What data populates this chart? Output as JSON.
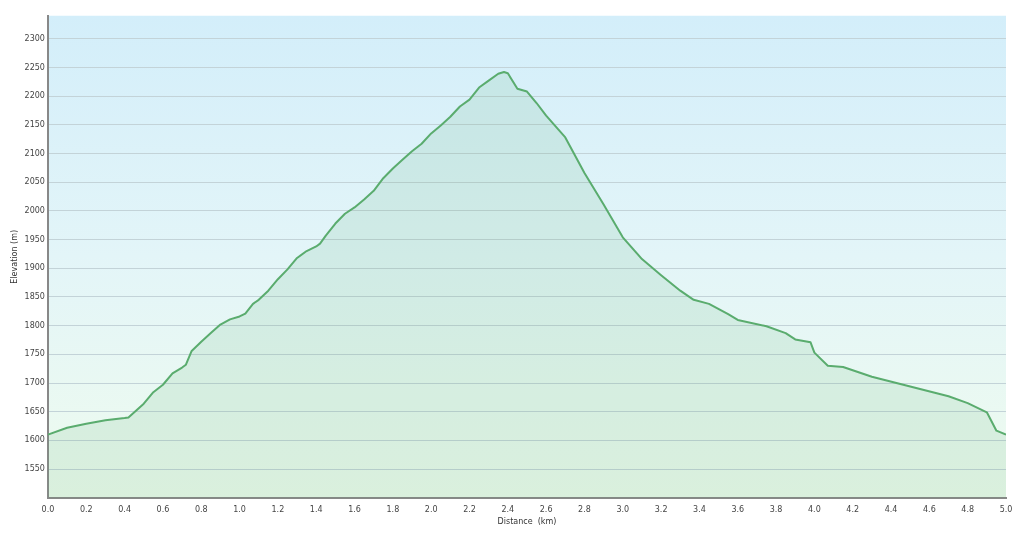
{
  "chart_data": {
    "type": "area",
    "xlabel": "Distance  (km)",
    "ylabel": "Elevation (m)",
    "xlim": [
      0,
      5
    ],
    "ylim": [
      1500,
      2340
    ],
    "xticks": [
      {
        "value": 0,
        "label": "0.0"
      },
      {
        "value": 0.2,
        "label": "0.2"
      },
      {
        "value": 0.4,
        "label": "0.4"
      },
      {
        "value": 0.6,
        "label": "0.6"
      },
      {
        "value": 0.8,
        "label": "0.8"
      },
      {
        "value": 1,
        "label": "1.0"
      },
      {
        "value": 1.2,
        "label": "1.2"
      },
      {
        "value": 1.4,
        "label": "1.4"
      },
      {
        "value": 1.6,
        "label": "1.6"
      },
      {
        "value": 1.8,
        "label": "1.8"
      },
      {
        "value": 2,
        "label": "2.0"
      },
      {
        "value": 2.2,
        "label": "2.2"
      },
      {
        "value": 2.4,
        "label": "2.4"
      },
      {
        "value": 2.6,
        "label": "2.6"
      },
      {
        "value": 2.8,
        "label": "2.8"
      },
      {
        "value": 3,
        "label": "3.0"
      },
      {
        "value": 3.2,
        "label": "3.2"
      },
      {
        "value": 3.4,
        "label": "3.4"
      },
      {
        "value": 3.6,
        "label": "3.6"
      },
      {
        "value": 3.8,
        "label": "3.8"
      },
      {
        "value": 4,
        "label": "4.0"
      },
      {
        "value": 4.2,
        "label": "4.2"
      },
      {
        "value": 4.4,
        "label": "4.4"
      },
      {
        "value": 4.6,
        "label": "4.6"
      },
      {
        "value": 4.8,
        "label": "4.8"
      },
      {
        "value": 5,
        "label": "5.0"
      }
    ],
    "yticks": [
      1550,
      1600,
      1650,
      1700,
      1750,
      1800,
      1850,
      1900,
      1950,
      2000,
      2050,
      2100,
      2150,
      2200,
      2250,
      2300
    ],
    "grid": "y",
    "marker": "none",
    "line_style": "solid",
    "x": [
      0,
      0.1,
      0.2,
      0.3,
      0.4,
      0.42,
      0.5,
      0.55,
      0.6,
      0.65,
      0.7,
      0.72,
      0.75,
      0.8,
      0.85,
      0.9,
      0.95,
      1,
      1.03,
      1.07,
      1.1,
      1.15,
      1.2,
      1.25,
      1.3,
      1.35,
      1.4,
      1.42,
      1.45,
      1.5,
      1.55,
      1.6,
      1.65,
      1.7,
      1.75,
      1.8,
      1.85,
      1.9,
      1.95,
      2,
      2.05,
      2.1,
      2.15,
      2.2,
      2.25,
      2.3,
      2.35,
      2.38,
      2.4,
      2.45,
      2.5,
      2.55,
      2.6,
      2.7,
      2.8,
      2.9,
      3,
      3.1,
      3.2,
      3.3,
      3.37,
      3.45,
      3.55,
      3.6,
      3.75,
      3.85,
      3.9,
      3.98,
      4,
      4.07,
      4.15,
      4.3,
      4.5,
      4.7,
      4.8,
      4.9,
      4.95,
      5
    ],
    "series": [
      {
        "color": "#5aac6e",
        "values": [
          1610,
          1622,
          1629,
          1635,
          1639,
          1640,
          1664,
          1684,
          1697,
          1717,
          1727,
          1732,
          1756,
          1772,
          1787,
          1802,
          1811,
          1816,
          1821,
          1838,
          1845,
          1861,
          1881,
          1898,
          1918,
          1930,
          1938,
          1943,
          1957,
          1978,
          1995,
          2006,
          2020,
          2035,
          2057,
          2074,
          2089,
          2104,
          2117,
          2135,
          2149,
          2164,
          2182,
          2194,
          2215,
          2227,
          2239,
          2242,
          2240,
          2213,
          2208,
          2188,
          2166,
          2128,
          2066,
          2011,
          1954,
          1916,
          1888,
          1861,
          1845,
          1838,
          1820,
          1810,
          1799,
          1787,
          1776,
          1771,
          1753,
          1730,
          1728,
          1711,
          1694,
          1677,
          1665,
          1649,
          1617,
          1610
        ]
      }
    ]
  }
}
